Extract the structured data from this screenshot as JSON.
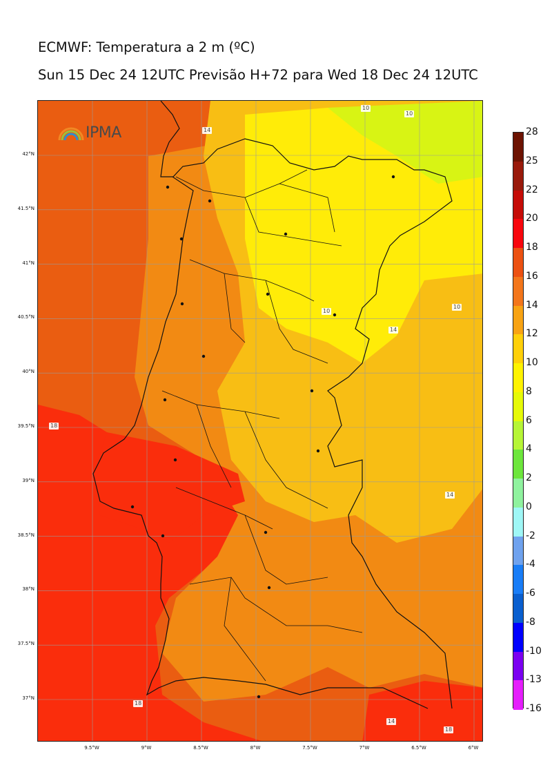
{
  "title": {
    "line1": "ECMWF: Temperatura a 2 m (ºC)",
    "line2": "Sun 15 Dec 24 12UTC Previsão H+72 para Wed 18 Dec 24 12UTC"
  },
  "logo": {
    "text": "IPMA",
    "icon": "rainbow-arc-icon"
  },
  "map": {
    "lat_labels": [
      "42°N",
      "41.5°N",
      "41°N",
      "40.5°N",
      "40°N",
      "39.5°N",
      "39°N",
      "38.5°N",
      "38°N",
      "37.5°N",
      "37°N"
    ],
    "lon_labels": [
      "9.5°W",
      "9°W",
      "8.5°W",
      "8°W",
      "7.5°W",
      "7°W",
      "6.5°W",
      "6°W"
    ],
    "contour_labels": [
      "10",
      "10",
      "14",
      "10",
      "10",
      "18",
      "14",
      "14",
      "18",
      "14",
      "18"
    ],
    "ocean_color": "#ea5d11",
    "warm_color": "#fa2d0c",
    "land_color": "#f28a13",
    "cool_color": "#f8be14",
    "cold_color": "#ffec08",
    "coldest_color": "#d8f414"
  },
  "colorbar": {
    "levels": [
      "28",
      "25",
      "22",
      "20",
      "18",
      "16",
      "14",
      "12",
      "10",
      "8",
      "6",
      "4",
      "2",
      "0",
      "-2",
      "-4",
      "-6",
      "-8",
      "-10",
      "-13",
      "-16"
    ],
    "colors": [
      "#6d1302",
      "#991a0b",
      "#c50c07",
      "#f8060d",
      "#ec5112",
      "#f3761b",
      "#f8a313",
      "#ffd009",
      "#fef300",
      "#e6fa07",
      "#b6f536",
      "#6de63c",
      "#8ff29e",
      "#9ff7f6",
      "#6fa2ee",
      "#197df7",
      "#0a5fcf",
      "#0000ff",
      "#7b00f1",
      "#e51efc"
    ]
  }
}
